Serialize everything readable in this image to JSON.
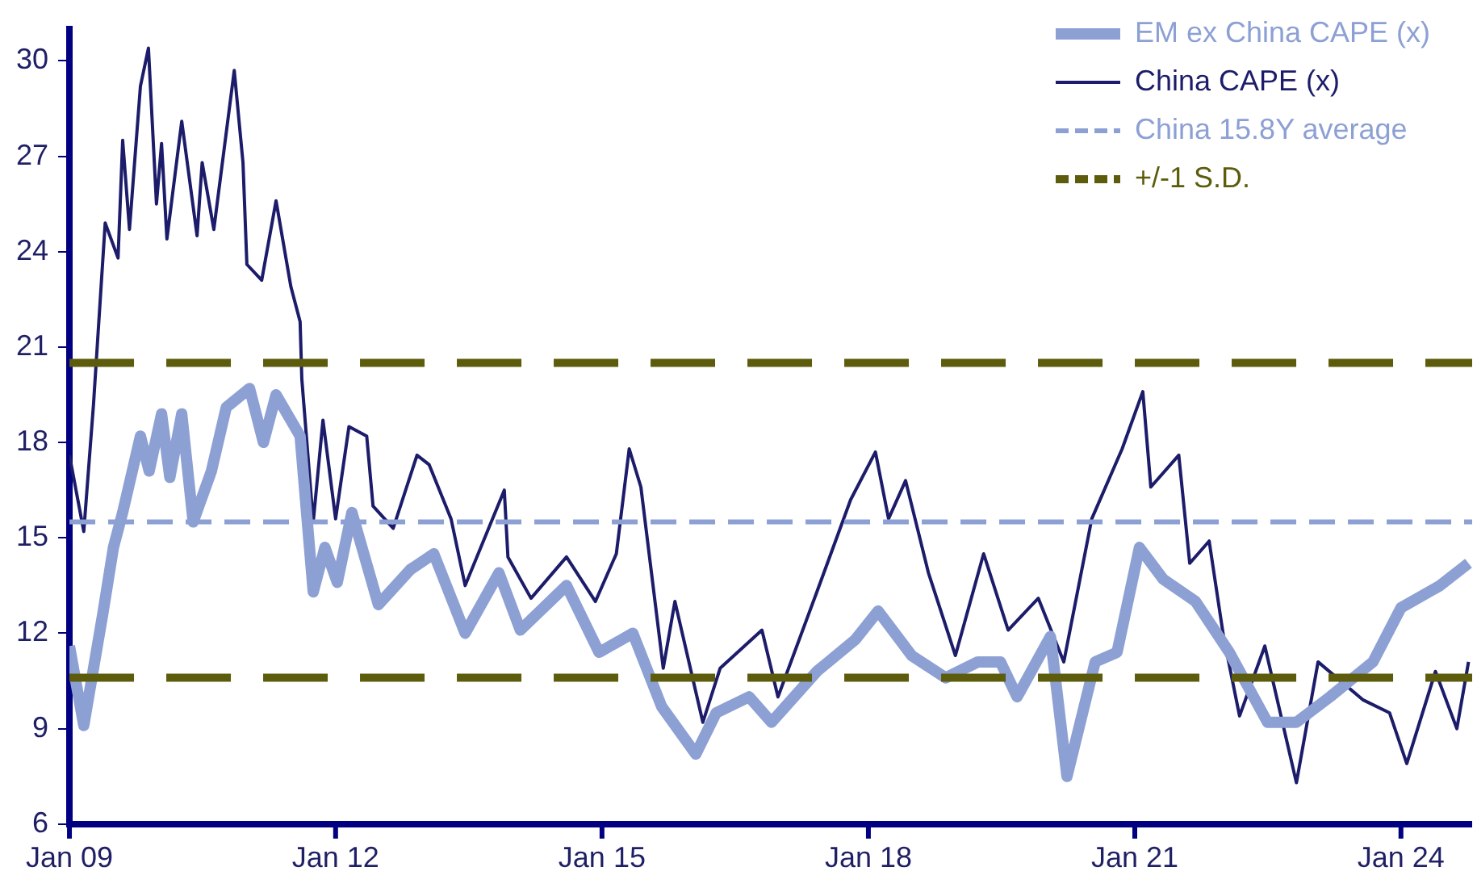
{
  "chart_data": {
    "type": "line",
    "xlim": [
      "2009-01-01",
      "2024-10-20"
    ],
    "xticks": [
      {
        "value": "2009-01-01",
        "label": "Jan 09"
      },
      {
        "value": "2012-01-01",
        "label": "Jan 12"
      },
      {
        "value": "2015-01-01",
        "label": "Jan 15"
      },
      {
        "value": "2018-01-01",
        "label": "Jan 18"
      },
      {
        "value": "2021-01-01",
        "label": "Jan 21"
      },
      {
        "value": "2024-01-01",
        "label": "Jan 24"
      }
    ],
    "ylim": [
      6,
      31
    ],
    "yticks": [
      6,
      9,
      12,
      15,
      18,
      21,
      24,
      27,
      30
    ],
    "grid": false,
    "legend": "top right",
    "marker": "none",
    "series": [
      {
        "name": "EM ex China CAPE (x)",
        "color": "#8da0d4",
        "x": [
          "2009-01-01",
          "2009-03-01",
          "2009-05-18",
          "2009-07-01",
          "2009-08-08",
          "2009-10-20",
          "2009-11-25",
          "2010-01-15",
          "2010-02-18",
          "2010-04-08",
          "2010-05-25",
          "2010-08-08",
          "2010-10-08",
          "2011-01-12",
          "2011-03-10",
          "2011-05-01",
          "2011-08-08",
          "2011-10-01",
          "2011-11-18",
          "2012-01-08",
          "2012-03-08",
          "2012-06-25",
          "2012-11-03",
          "2013-02-08",
          "2013-06-17",
          "2013-11-03",
          "2014-01-30",
          "2014-08-08",
          "2014-12-20",
          "2015-05-08",
          "2015-09-03",
          "2016-01-22",
          "2016-04-15",
          "2016-08-28",
          "2016-11-28",
          "2017-06-03",
          "2017-11-08",
          "2018-02-10",
          "2018-06-28",
          "2018-11-15",
          "2019-03-28",
          "2019-06-28",
          "2019-09-05",
          "2020-01-20",
          "2020-03-28",
          "2020-07-22",
          "2020-10-20",
          "2021-01-20",
          "2021-04-28",
          "2021-09-08",
          "2022-01-25",
          "2022-07-01",
          "2022-10-28",
          "2023-03-15",
          "2023-09-08",
          "2024-01-01",
          "2024-06-10",
          "2024-10-05"
        ],
        "values": [
          11.6,
          9.1,
          12.6,
          14.7,
          15.8,
          18.2,
          17.1,
          18.9,
          16.9,
          18.9,
          15.5,
          17.1,
          19.1,
          19.7,
          18.0,
          19.5,
          18.2,
          13.3,
          14.7,
          13.6,
          15.8,
          12.9,
          14.0,
          14.5,
          12.0,
          13.9,
          12.1,
          13.5,
          11.4,
          12.0,
          9.7,
          8.2,
          9.5,
          10.0,
          9.2,
          10.8,
          11.8,
          12.7,
          11.3,
          10.6,
          11.1,
          11.1,
          10.0,
          11.9,
          7.5,
          11.1,
          11.4,
          14.7,
          13.7,
          13.0,
          11.4,
          9.2,
          9.2,
          10.0,
          11.1,
          12.8,
          13.5,
          14.2
        ],
        "line_style": "solid"
      },
      {
        "name": "China CAPE (x)",
        "color": "#1c1c6a",
        "x": [
          "2009-01-01",
          "2009-03-01",
          "2009-04-10",
          "2009-05-28",
          "2009-07-20",
          "2009-08-08",
          "2009-09-05",
          "2009-10-20",
          "2009-11-22",
          "2009-12-25",
          "2010-01-15",
          "2010-02-06",
          "2010-04-08",
          "2010-06-10",
          "2010-07-01",
          "2010-08-18",
          "2010-11-10",
          "2010-12-16",
          "2011-01-01",
          "2011-03-03",
          "2011-05-01",
          "2011-07-01",
          "2011-08-08",
          "2011-08-15",
          "2011-10-01",
          "2011-11-10",
          "2012-01-01",
          "2012-02-25",
          "2012-05-08",
          "2012-06-03",
          "2012-08-25",
          "2012-12-01",
          "2013-01-20",
          "2013-04-20",
          "2013-06-17",
          "2013-11-25",
          "2013-12-10",
          "2014-03-15",
          "2014-08-08",
          "2014-12-05",
          "2015-03-01",
          "2015-04-23",
          "2015-06-10",
          "2015-09-10",
          "2015-10-28",
          "2016-02-20",
          "2016-05-01",
          "2016-10-20",
          "2016-12-25",
          "2017-06-03",
          "2017-10-20",
          "2018-01-30",
          "2018-03-25",
          "2018-06-03",
          "2018-09-05",
          "2018-12-25",
          "2019-04-20",
          "2019-07-30",
          "2019-12-01",
          "2020-03-15",
          "2020-07-08",
          "2020-11-10",
          "2021-02-03",
          "2021-03-08",
          "2021-07-01",
          "2021-08-15",
          "2021-11-03",
          "2022-01-01",
          "2022-03-08",
          "2022-06-20",
          "2022-10-28",
          "2023-01-25",
          "2023-07-30",
          "2023-11-15",
          "2024-01-25",
          "2024-05-22",
          "2024-08-18",
          "2024-10-05"
        ],
        "values": [
          17.6,
          15.2,
          19.2,
          24.9,
          23.8,
          27.5,
          24.7,
          29.2,
          30.4,
          25.5,
          27.4,
          24.4,
          28.1,
          24.5,
          26.8,
          24.7,
          29.7,
          26.8,
          23.6,
          23.1,
          25.6,
          22.9,
          21.8,
          20.0,
          15.5,
          18.7,
          15.6,
          18.5,
          18.2,
          16.0,
          15.3,
          17.6,
          17.3,
          15.6,
          13.5,
          16.5,
          14.4,
          13.1,
          14.4,
          13.0,
          14.5,
          17.8,
          16.6,
          10.9,
          13.0,
          9.2,
          10.9,
          12.1,
          10.0,
          13.3,
          16.2,
          17.7,
          15.6,
          16.8,
          13.9,
          11.3,
          14.5,
          12.1,
          13.1,
          11.1,
          15.6,
          17.8,
          19.6,
          16.6,
          17.6,
          14.2,
          14.9,
          11.9,
          9.4,
          11.6,
          7.3,
          11.1,
          9.9,
          9.5,
          7.9,
          10.8,
          9.0,
          11.1
        ],
        "line_style": "solid"
      }
    ],
    "ref_lines": [
      {
        "axis": "y",
        "value": 15.5,
        "label": "China 15.8Y average",
        "color": "#8da0d4",
        "line_style": "dashed"
      },
      {
        "axis": "y",
        "value": 20.5,
        "label": "+/-1 S.D.",
        "color": "#5c5c0c",
        "line_style": "dashed"
      },
      {
        "axis": "y",
        "value": 10.6,
        "color": "#5c5c0c",
        "line_style": "dashed"
      }
    ]
  }
}
